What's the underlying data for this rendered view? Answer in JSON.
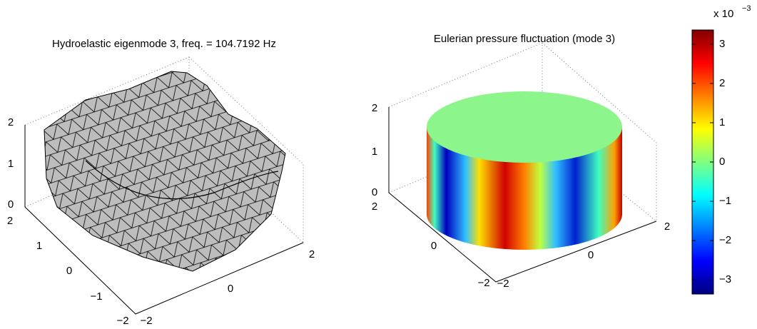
{
  "panels": [
    {
      "title": "Hydroelastic eigenmode 3, freq. = 104.7192 Hz",
      "z_ticks": [
        "0",
        "1",
        "2"
      ],
      "y_ticks": [
        "2",
        "1",
        "0",
        "−1",
        "−2"
      ],
      "x_ticks": [
        "2",
        "0",
        "−2"
      ]
    },
    {
      "title": "Eulerian pressure fluctuation (mode 3)",
      "z_ticks": [
        "0",
        "1",
        "2"
      ],
      "y_ticks": [
        "2",
        "0",
        "−2"
      ],
      "x_ticks": [
        "2",
        "0",
        "−2"
      ]
    }
  ],
  "colorbar": {
    "multiplier": "x 10",
    "exponent": "−3",
    "range": [
      -3.36,
      3.36
    ],
    "ticks": [
      {
        "value": -3,
        "label": "−3"
      },
      {
        "value": -2,
        "label": "−2"
      },
      {
        "value": -1,
        "label": "−1"
      },
      0,
      1,
      2,
      3
    ]
  }
}
